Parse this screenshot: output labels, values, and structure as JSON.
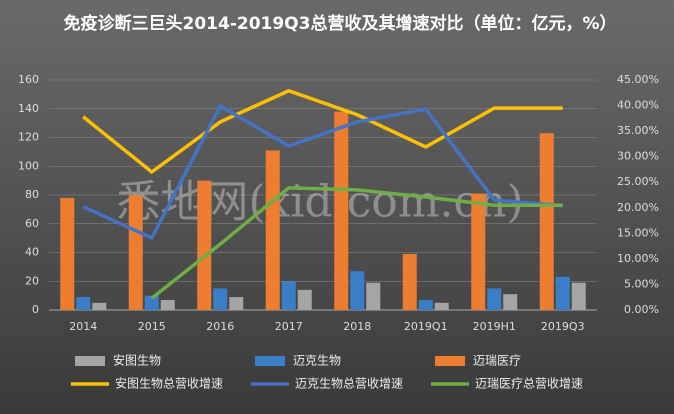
{
  "chart_data": {
    "type": "bar_line",
    "title": "免疫诊断三巨头2014-2019Q3总营收及其增速对比（单位：亿元，%）",
    "watermark": "悉地网(xidicom.cn)",
    "categories": [
      "2014",
      "2015",
      "2016",
      "2017",
      "2018",
      "2019Q1",
      "2019H1",
      "2019Q3"
    ],
    "series": [
      {
        "name": "安图生物",
        "type": "bar",
        "color": "#a5a5a5",
        "values": [
          5,
          7,
          9,
          14,
          19,
          5,
          11,
          19
        ]
      },
      {
        "name": "迈克生物",
        "type": "bar",
        "color": "#3b7ec8",
        "values": [
          9,
          10,
          15,
          20,
          27,
          7,
          15,
          23
        ]
      },
      {
        "name": "迈瑞医疗",
        "type": "bar",
        "color": "#ed7d31",
        "values": [
          78,
          80,
          90,
          111,
          138,
          39,
          81,
          123
        ]
      },
      {
        "name": "安图生物总营收增速",
        "type": "line",
        "axis": "y2",
        "color": "#ffc000",
        "values": [
          37.8,
          27,
          36.8,
          42.9,
          38.2,
          31.9,
          39.5,
          39.5
        ]
      },
      {
        "name": "迈克生物总营收增速",
        "type": "line",
        "axis": "y2",
        "color": "#4472c4",
        "values": [
          20.2,
          14.1,
          39.9,
          32.1,
          36.8,
          39.3,
          21.5,
          20.4
        ]
      },
      {
        "name": "迈瑞医疗总营收增速",
        "type": "line",
        "axis": "y2",
        "color": "#70ad47",
        "values": [
          null,
          2.3,
          12.9,
          23.9,
          23.5,
          22.1,
          20.5,
          20.5
        ]
      }
    ],
    "ylim": [
      0,
      160
    ],
    "yticks": [
      0,
      20,
      40,
      60,
      80,
      100,
      120,
      140,
      160
    ],
    "y2lim": [
      0,
      45
    ],
    "y2ticks": [
      {
        "value": 0,
        "label": "0.00%"
      },
      {
        "value": 5,
        "label": "5.00%"
      },
      {
        "value": 10,
        "label": "10.00%"
      },
      {
        "value": 15,
        "label": "15.00%"
      },
      {
        "value": 20,
        "label": "20.00%"
      },
      {
        "value": 25,
        "label": "25.00%"
      },
      {
        "value": 30,
        "label": "30.00%"
      },
      {
        "value": 35,
        "label": "35.00%"
      },
      {
        "value": 40,
        "label": "40.00%"
      },
      {
        "value": 45,
        "label": "45.00%"
      }
    ],
    "grid": true,
    "legend": "bottom"
  }
}
